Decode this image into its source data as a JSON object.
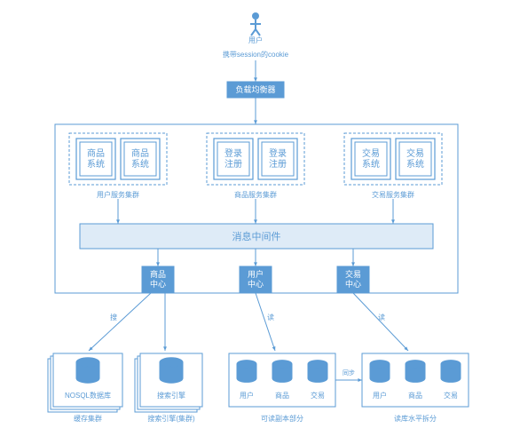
{
  "diagram": {
    "type": "flowchart",
    "stroke": "#5b9bd5",
    "text_color": "#5b9bd5",
    "fill_white": "#ffffff",
    "fill_blue": "#5b9bd5",
    "fill_bar": "#deebf7",
    "user_label": "用户",
    "cookie_label": "携带session的cookie",
    "load_balancer": "负载均衡器",
    "cluster_boxes": {
      "left": {
        "a": "商品系统",
        "b": "商品系统",
        "caption": "用户服务集群"
      },
      "mid": {
        "a": "登录注册",
        "b": "登录注册",
        "caption": "商品服务集群"
      },
      "right": {
        "a": "交易系统",
        "b": "交易系统",
        "caption": "交易服务集群"
      }
    },
    "middleware": "消息中间件",
    "centers": {
      "a": "商品中心",
      "b": "用户中心",
      "c": "交易中心"
    },
    "edge_labels": {
      "search": "搜",
      "read": "读",
      "write": "读",
      "sync": "同步"
    },
    "storage": {
      "nosql": {
        "label": "NOSQL数据库",
        "caption": "缓存集群"
      },
      "search": {
        "label": "搜索引擎",
        "caption": "搜索引擎(集群)"
      },
      "db_main": {
        "cols": [
          "用户",
          "商品",
          "交易"
        ],
        "caption": "可读副本部分"
      },
      "db_replica": {
        "cols": [
          "用户",
          "商品",
          "交易"
        ],
        "caption": "读库水平拆分"
      }
    }
  }
}
